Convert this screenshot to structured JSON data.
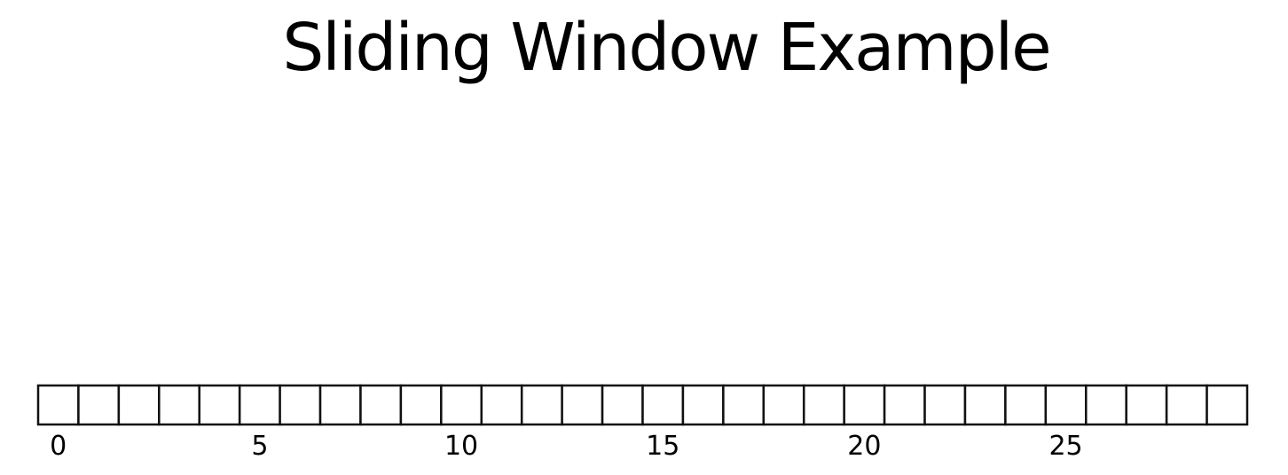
{
  "slide": {
    "title": "Sliding Window Example"
  },
  "sequence_strip": {
    "slot_count": 30,
    "labels": [
      "0",
      "5",
      "10",
      "15",
      "20",
      "25"
    ],
    "label_slot_indices": [
      0,
      5,
      10,
      15,
      20,
      25
    ],
    "stroke_color": "#111111",
    "fill_color": "#ffffff"
  }
}
